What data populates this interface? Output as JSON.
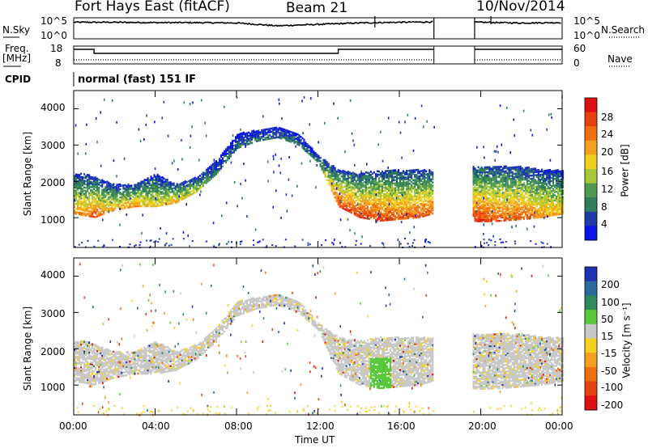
{
  "header": {
    "station": "Fort Hays East (fitACF)",
    "beam": "Beam 21",
    "date": "10/Nov/2014"
  },
  "left_labels": {
    "nsky": "N.Sky",
    "freq_line1": "Freq.",
    "freq_line2": "[MHz]",
    "cpid": "CPID"
  },
  "right_labels": {
    "nsearch": "N.Search",
    "nave": "Nave"
  },
  "noise_axis": {
    "left_ticks": [
      "10^5",
      "10^0"
    ],
    "right_ticks": [
      "10^5",
      "10^0"
    ]
  },
  "freq_axis": {
    "left_ticks": [
      "18",
      "8"
    ],
    "right_ticks": [
      "60",
      "0"
    ]
  },
  "cpid_text": "normal (fast) 151 IF",
  "time_axis": {
    "label": "Time UT",
    "ticks": [
      "00:00",
      "04:00",
      "08:00",
      "12:00",
      "16:00",
      "20:00",
      "00:00"
    ]
  },
  "range_axis": {
    "label": "Slant Range [km]",
    "ticks": [
      "1000",
      "2000",
      "3000",
      "4000"
    ]
  },
  "power_colorbar": {
    "label": "Power [dB]",
    "ticks": [
      "4",
      "8",
      "12",
      "16",
      "20",
      "24",
      "28"
    ],
    "colors": [
      "#0a14e6",
      "#1e3ca8",
      "#2e7d5b",
      "#4f9a52",
      "#a8c83a",
      "#f0d020",
      "#f5a020",
      "#f07010",
      "#e84010",
      "#e01010"
    ]
  },
  "velocity_colorbar": {
    "label": "Velocity [m s⁻¹]",
    "ticks": [
      "200",
      "100",
      "50",
      "15",
      "-15",
      "-50",
      "-100",
      "-200"
    ],
    "colors": [
      "#1e32b4",
      "#2a6aa0",
      "#2e8a5a",
      "#5ac83c",
      "#c8c8c8",
      "#f5d220",
      "#f5a020",
      "#f07010",
      "#e84010",
      "#e01010"
    ]
  },
  "chart_data": [
    {
      "type": "line",
      "title": "N.Sky / N.Search",
      "x": "Time UT (h)",
      "xlim": [
        0,
        24
      ],
      "ylim_log10": [
        0,
        5
      ],
      "series": [
        {
          "name": "N.Sky",
          "x": [
            0,
            2,
            4,
            6,
            8,
            10,
            12,
            14,
            16,
            17.7
          ],
          "values": [
            4.2,
            4.2,
            4.1,
            4.1,
            4.0,
            3.2,
            3.6,
            4.0,
            4.2,
            4.3
          ]
        },
        {
          "name": "N.Sky",
          "x": [
            19.7,
            20,
            22,
            24
          ],
          "values": [
            4.2,
            4.2,
            4.0,
            4.1
          ]
        }
      ]
    },
    {
      "type": "line",
      "title": "Freq. [MHz] / Nave",
      "xlim": [
        0,
        24
      ],
      "ylim": [
        8,
        18
      ],
      "series": [
        {
          "name": "Freq. [MHz]",
          "x": [
            0,
            1,
            1,
            13,
            13,
            17.7
          ],
          "values": [
            16.5,
            16.5,
            14,
            14,
            16.5,
            16.5
          ]
        },
        {
          "name": "Freq. [MHz]",
          "x": [
            19.7,
            24
          ],
          "values": [
            16.5,
            16.5
          ]
        }
      ]
    },
    {
      "type": "heatmap",
      "title": "Power [dB]",
      "xlabel": "Time UT",
      "ylabel": "Slant Range [km]",
      "xlim": [
        0,
        24
      ],
      "ylim": [
        180,
        4500
      ],
      "scatter_band": {
        "x": [
          0,
          0.5,
          1,
          1.5,
          2,
          3,
          4,
          5,
          6,
          7,
          8,
          9,
          10,
          11,
          12,
          13,
          14,
          15,
          16,
          17,
          17.6
        ],
        "lower_km": [
          1100,
          1050,
          1000,
          1100,
          1200,
          1300,
          1300,
          1400,
          1700,
          2200,
          2900,
          3100,
          3200,
          3000,
          2500,
          1300,
          1000,
          900,
          950,
          1000,
          1100
        ],
        "upper_km": [
          2200,
          2200,
          2100,
          2000,
          1900,
          1900,
          2200,
          1900,
          2100,
          2600,
          3300,
          3400,
          3500,
          3300,
          2700,
          2300,
          2200,
          2300,
          2300,
          2300,
          2300
        ],
        "peak_power_db": [
          22,
          22,
          26,
          22,
          20,
          22,
          18,
          20,
          16,
          8,
          8,
          8,
          8,
          8,
          10,
          28,
          28,
          28,
          26,
          26,
          26
        ]
      },
      "scatter_band_2": {
        "x": [
          19.6,
          20,
          21,
          22,
          23,
          24
        ],
        "lower_km": [
          900,
          880,
          900,
          950,
          1000,
          1100
        ],
        "upper_km": [
          2400,
          2400,
          2400,
          2400,
          2300,
          2300
        ],
        "peak_power_db": [
          28,
          28,
          26,
          26,
          22,
          20
        ]
      }
    },
    {
      "type": "heatmap",
      "title": "Velocity [m s⁻¹]",
      "xlabel": "Time UT",
      "ylabel": "Slant Range [km]",
      "xlim": [
        0,
        24
      ],
      "ylim": [
        180,
        4500
      ]
    }
  ]
}
